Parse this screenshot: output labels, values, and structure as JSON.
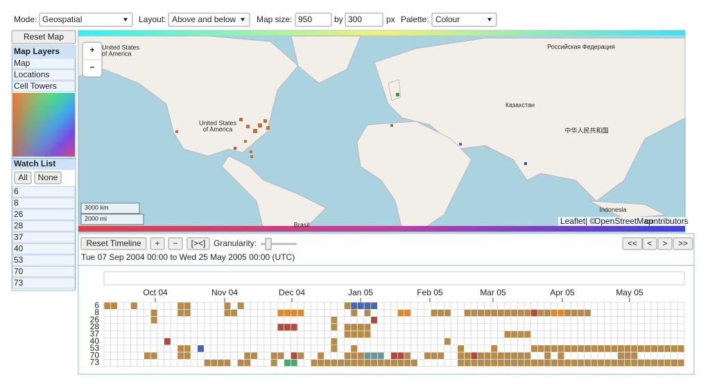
{
  "toolbar": {
    "mode_label": "Mode:",
    "mode": "Geospatial",
    "layout_label": "Layout:",
    "layout": "Above and below",
    "size_label": "Map size:",
    "width": "950",
    "by": "by",
    "height": "300",
    "unit": "px",
    "palette_label": "Palette:",
    "palette": "Colour"
  },
  "sidebar": {
    "reset_map": "Reset Map",
    "layers_title": "Map Layers",
    "layers": [
      "Map",
      "Locations",
      "Cell Towers"
    ],
    "watch_title": "Watch List",
    "all": "All",
    "none": "None",
    "watch": [
      "6",
      "8",
      "26",
      "28",
      "37",
      "40",
      "53",
      "70",
      "73"
    ]
  },
  "map": {
    "zoom_in": "+",
    "zoom_out": "−",
    "labels": [
      "United States",
      "of America",
      "United States",
      "of America",
      "Российская Федерация",
      "Казахстан",
      "中华人民共和国",
      "Indonesia",
      "Brasil"
    ],
    "scale": [
      "3000 km",
      "2000 mi"
    ],
    "attribution": [
      "Leaflet",
      "| ©",
      "OpenStreetMap",
      "contributors"
    ]
  },
  "timeline": {
    "reset": "Reset Timeline",
    "plus": "+",
    "minus": "−",
    "fit": "[><]",
    "granularity": "Granularity:",
    "nav": [
      "<<",
      "<",
      ">",
      ">>"
    ],
    "range": "Tue 07 Sep 2004 00:00 to Wed 25 May 2005 00:00 (UTC)",
    "months": [
      "Oct 04",
      "Nov 04",
      "Dec 04",
      "Jan 05",
      "Feb 05",
      "Mar 05",
      "Apr 05",
      "May 05"
    ],
    "rows": [
      "6",
      "8",
      "26",
      "28",
      "37",
      "40",
      "53",
      "70",
      "73"
    ],
    "events": [
      [
        [
          0,
          2,
          "b"
        ],
        [
          4,
          1,
          "b"
        ],
        [
          11,
          2,
          "b"
        ],
        [
          18,
          1,
          "b"
        ],
        [
          20,
          1,
          "b"
        ],
        [
          36,
          1,
          "b"
        ],
        [
          37,
          4,
          "u"
        ]
      ],
      [
        [
          7,
          1,
          "b"
        ],
        [
          11,
          2,
          "b"
        ],
        [
          18,
          2,
          "b"
        ],
        [
          26,
          4,
          "o"
        ],
        [
          37,
          1,
          "b"
        ],
        [
          39,
          1,
          "b"
        ],
        [
          44,
          2,
          "o"
        ],
        [
          49,
          3,
          "b"
        ],
        [
          54,
          10,
          "b"
        ],
        [
          64,
          1,
          "r"
        ],
        [
          65,
          2,
          "b"
        ],
        [
          67,
          2,
          "o"
        ],
        [
          69,
          4,
          "b"
        ]
      ],
      [
        [
          7,
          1,
          "b"
        ],
        [
          34,
          1,
          "b"
        ],
        [
          40,
          1,
          "r"
        ]
      ],
      [
        [
          26,
          3,
          "r"
        ],
        [
          34,
          1,
          "b"
        ],
        [
          36,
          4,
          "b"
        ]
      ],
      [
        [
          36,
          4,
          "b"
        ],
        [
          60,
          4,
          "b"
        ]
      ],
      [
        [
          9,
          1,
          "r"
        ],
        [
          34,
          1,
          "b"
        ],
        [
          51,
          1,
          "b"
        ]
      ],
      [
        [
          11,
          2,
          "b"
        ],
        [
          14,
          1,
          "u"
        ],
        [
          34,
          1,
          "b"
        ],
        [
          37,
          1,
          "b"
        ],
        [
          53,
          1,
          "b"
        ],
        [
          58,
          1,
          "b"
        ],
        [
          64,
          8,
          "b"
        ],
        [
          68,
          19,
          "b"
        ]
      ],
      [
        [
          6,
          2,
          "b"
        ],
        [
          11,
          2,
          "b"
        ],
        [
          21,
          2,
          "b"
        ],
        [
          25,
          2,
          "b"
        ],
        [
          28,
          1,
          "r"
        ],
        [
          29,
          1,
          "b"
        ],
        [
          32,
          1,
          "b"
        ],
        [
          36,
          3,
          "b"
        ],
        [
          39,
          3,
          "t"
        ],
        [
          43,
          2,
          "r"
        ],
        [
          45,
          1,
          "b"
        ],
        [
          48,
          3,
          "b"
        ],
        [
          53,
          2,
          "b"
        ],
        [
          55,
          1,
          "r"
        ],
        [
          56,
          8,
          "b"
        ],
        [
          66,
          1,
          "b"
        ],
        [
          68,
          1,
          "b"
        ],
        [
          77,
          3,
          "b"
        ]
      ],
      [
        [
          15,
          4,
          "b"
        ],
        [
          20,
          2,
          "b"
        ],
        [
          25,
          1,
          "b"
        ],
        [
          27,
          2,
          "g"
        ],
        [
          31,
          14,
          "b"
        ],
        [
          45,
          2,
          "b"
        ],
        [
          53,
          34,
          "b"
        ]
      ]
    ],
    "colors": {
      "b": "#b58b4c",
      "o": "#e0892c",
      "r": "#b04a3c",
      "u": "#4a66b0",
      "t": "#6a9a9c",
      "g": "#4aa86a"
    }
  }
}
